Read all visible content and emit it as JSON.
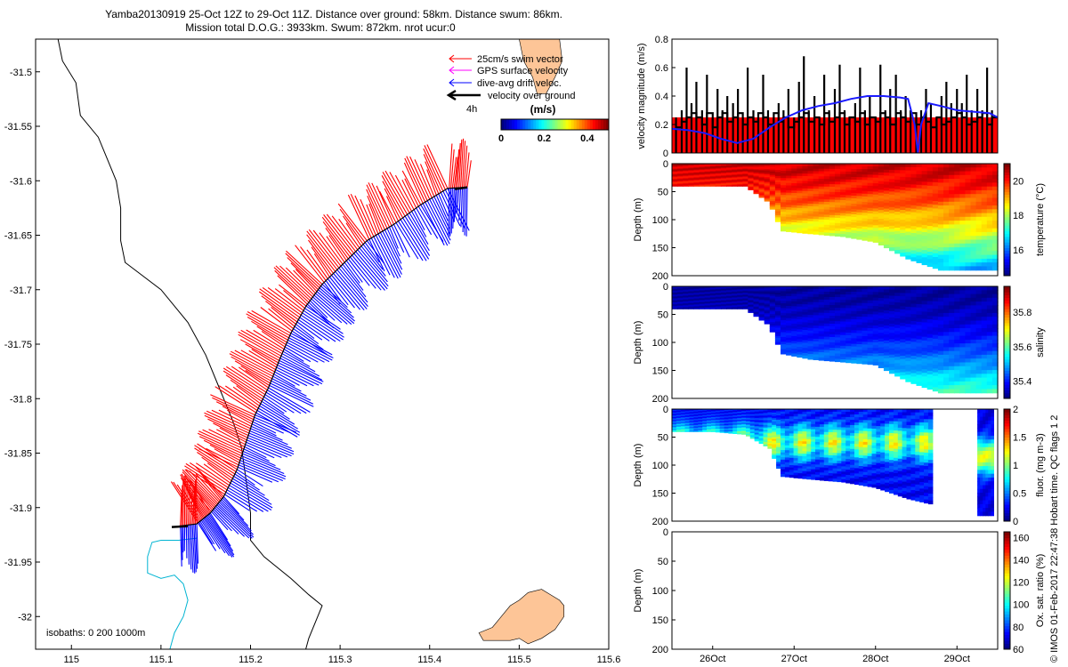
{
  "header": {
    "line1": "Yamba20130919 25-Oct 12Z to 29-Oct 11Z. Distance over ground: 58km. Distance swum: 86km.",
    "line2": "Mission total D.O.G.: 3933km. Swum: 872km. nrot ucur:0"
  },
  "side_note": "© IMOS 01-Feb-2017 22:47:38 Hobart time. QC flags 1  2",
  "colors": {
    "swim": "#ff0000",
    "gps": "#ff00ff",
    "drift": "#0000ff",
    "ground": "#000000",
    "land": "#fdc597",
    "coast": "#000000",
    "isobath": "#00b4d2"
  },
  "chart_data": [
    {
      "id": "map",
      "type": "line",
      "title": "",
      "xlabel": "",
      "ylabel": "",
      "xlim": [
        114.96,
        115.6
      ],
      "ylim": [
        -32.03,
        -31.47
      ],
      "xticks": [
        115,
        115.1,
        115.2,
        115.3,
        115.4,
        115.5,
        115.6
      ],
      "xtick_labels": [
        "115",
        "115.1",
        "115.2",
        "115.3",
        "115.4",
        "115.5",
        "115.6"
      ],
      "yticks": [
        -31.5,
        -31.55,
        -31.6,
        -31.65,
        -31.7,
        -31.75,
        -31.8,
        -31.85,
        -31.9,
        -31.95,
        -32
      ],
      "ytick_labels": [
        "-31.5",
        "-31.55",
        "-31.6",
        "-31.65",
        "-31.7",
        "-31.75",
        "-31.8",
        "-31.85",
        "-31.9",
        "-31.95",
        "-32"
      ],
      "legend": {
        "placement": "top-right",
        "entries": [
          "25cm/s swim vector",
          "GPS surface velocity",
          "dive-avg drift veloc.",
          "velocity over ground"
        ],
        "scale_label": "4h"
      },
      "colorbar": {
        "title": "(m/s)",
        "ticks": [
          "0",
          "0.2",
          "0.4"
        ],
        "range": [
          0,
          0.5
        ]
      },
      "isobaths_label": "isobaths: 0   200  1000m",
      "track": [
        [
          115.442,
          -31.606
        ],
        [
          115.42,
          -31.607
        ],
        [
          115.39,
          -31.622
        ],
        [
          115.36,
          -31.64
        ],
        [
          115.33,
          -31.655
        ],
        [
          115.305,
          -31.675
        ],
        [
          115.28,
          -31.695
        ],
        [
          115.262,
          -31.715
        ],
        [
          115.245,
          -31.74
        ],
        [
          115.232,
          -31.765
        ],
        [
          115.22,
          -31.79
        ],
        [
          115.205,
          -31.815
        ],
        [
          115.195,
          -31.84
        ],
        [
          115.185,
          -31.865
        ],
        [
          115.17,
          -31.89
        ],
        [
          115.155,
          -31.905
        ],
        [
          115.14,
          -31.915
        ],
        [
          115.12,
          -31.917
        ]
      ],
      "coastline": [
        [
          114.985,
          -31.47
        ],
        [
          114.99,
          -31.49
        ],
        [
          115.005,
          -31.51
        ],
        [
          115.01,
          -31.54
        ],
        [
          115.03,
          -31.56
        ],
        [
          115.04,
          -31.58
        ],
        [
          115.05,
          -31.6
        ],
        [
          115.055,
          -31.625
        ],
        [
          115.055,
          -31.655
        ],
        [
          115.06,
          -31.675
        ],
        [
          115.1,
          -31.7
        ],
        [
          115.13,
          -31.73
        ],
        [
          115.15,
          -31.76
        ],
        [
          115.165,
          -31.79
        ],
        [
          115.18,
          -31.82
        ],
        [
          115.19,
          -31.845
        ],
        [
          115.195,
          -31.875
        ],
        [
          115.2,
          -31.905
        ],
        [
          115.2,
          -31.93
        ],
        [
          115.215,
          -31.945
        ],
        [
          115.245,
          -31.965
        ],
        [
          115.265,
          -31.98
        ],
        [
          115.28,
          -31.99
        ],
        [
          115.275,
          -32.0
        ],
        [
          115.265,
          -32.02
        ],
        [
          115.26,
          -32.035
        ]
      ],
      "isobath": [
        [
          115.14,
          -31.928
        ],
        [
          115.12,
          -31.93
        ],
        [
          115.1,
          -31.93
        ],
        [
          115.09,
          -31.932
        ],
        [
          115.085,
          -31.945
        ],
        [
          115.085,
          -31.96
        ],
        [
          115.1,
          -31.965
        ],
        [
          115.115,
          -31.962
        ],
        [
          115.125,
          -31.97
        ],
        [
          115.13,
          -31.985
        ],
        [
          115.125,
          -32.0
        ],
        [
          115.115,
          -32.015
        ],
        [
          115.11,
          -32.03
        ]
      ],
      "island": [
        [
          115.455,
          -32.015
        ],
        [
          115.47,
          -32.01
        ],
        [
          115.48,
          -32.0
        ],
        [
          115.49,
          -31.99
        ],
        [
          115.5,
          -31.985
        ],
        [
          115.51,
          -31.978
        ],
        [
          115.525,
          -31.975
        ],
        [
          115.535,
          -31.98
        ],
        [
          115.545,
          -31.985
        ],
        [
          115.55,
          -31.99
        ],
        [
          115.55,
          -32.0
        ],
        [
          115.54,
          -32.012
        ],
        [
          115.525,
          -32.02
        ],
        [
          115.51,
          -32.025
        ],
        [
          115.5,
          -32.02
        ],
        [
          115.49,
          -32.022
        ],
        [
          115.475,
          -32.022
        ],
        [
          115.46,
          -32.022
        ],
        [
          115.455,
          -32.015
        ]
      ],
      "mainland_ne": [
        [
          115.5,
          -31.47
        ],
        [
          115.545,
          -31.47
        ],
        [
          115.548,
          -31.49
        ],
        [
          115.54,
          -31.505
        ],
        [
          115.53,
          -31.52
        ],
        [
          115.52,
          -31.52
        ],
        [
          115.515,
          -31.505
        ],
        [
          115.505,
          -31.49
        ],
        [
          115.5,
          -31.47
        ]
      ]
    },
    {
      "id": "velocity",
      "type": "bar",
      "ylabel": "velocity magnitude (m/s)",
      "ylim": [
        0,
        0.8
      ],
      "yticks": [
        0,
        0.2,
        0.4,
        0.6,
        0.8
      ],
      "xlim": [
        25.5,
        29.5
      ],
      "red_band": 0.25,
      "bars_x": [
        25.55,
        25.62,
        25.68,
        25.74,
        25.8,
        25.87,
        25.93,
        26.0,
        26.06,
        26.12,
        26.18,
        26.25,
        26.31,
        26.37,
        26.43,
        26.5,
        26.56,
        26.62,
        26.68,
        26.75,
        26.81,
        26.87,
        26.93,
        27.0,
        27.06,
        27.12,
        27.18,
        27.25,
        27.31,
        27.37,
        27.43,
        27.5,
        27.56,
        27.62,
        27.68,
        27.75,
        27.81,
        27.87,
        27.93,
        28.0,
        28.06,
        28.12,
        28.18,
        28.25,
        28.31,
        28.37,
        28.43,
        28.5,
        28.56,
        28.62,
        28.68,
        28.75,
        28.81,
        28.87,
        28.93,
        29.0,
        29.06,
        29.12,
        29.18,
        29.25,
        29.31,
        29.37,
        29.43
      ],
      "bars_y": [
        0.25,
        0.3,
        0.6,
        0.35,
        0.5,
        0.3,
        0.55,
        0.25,
        0.45,
        0.3,
        0.4,
        0.35,
        0.45,
        0.25,
        0.6,
        0.3,
        0.25,
        0.55,
        0.3,
        0.25,
        0.35,
        0.3,
        0.45,
        0.25,
        0.5,
        0.68,
        0.3,
        0.4,
        0.25,
        0.55,
        0.3,
        0.45,
        0.62,
        0.3,
        0.25,
        0.35,
        0.6,
        0.3,
        0.4,
        0.25,
        0.62,
        0.3,
        0.45,
        0.55,
        0.3,
        0.4,
        0.3,
        0.25,
        0.3,
        0.45,
        0.35,
        0.25,
        0.4,
        0.5,
        0.35,
        0.45,
        0.35,
        0.55,
        0.3,
        0.45,
        0.3,
        0.6,
        0.3
      ],
      "ground_speed": [
        0.18,
        0.22,
        0.25,
        0.28,
        0.25,
        0.2,
        0.28,
        0.18,
        0.25,
        0.28,
        0.22,
        0.25,
        0.28,
        0.2,
        0.25,
        0.22,
        0.28,
        0.25,
        0.2,
        0.28,
        0.22,
        0.25,
        0.18,
        0.22,
        0.25,
        0.28,
        0.22,
        0.25,
        0.2,
        0.28,
        0.22,
        0.25,
        0.28,
        0.2,
        0.25,
        0.22,
        0.28,
        0.2,
        0.25,
        0.22,
        0.28,
        0.25,
        0.2,
        0.28,
        0.25,
        0.22,
        0.28,
        0.2,
        0.25,
        0.22,
        0.18,
        0.25,
        0.2,
        0.22,
        0.25,
        0.28,
        0.25,
        0.2,
        0.22,
        0.25,
        0.28,
        0.2,
        0.25
      ],
      "drift_x": [
        25.5,
        25.7,
        25.9,
        26.1,
        26.3,
        26.5,
        26.7,
        26.9,
        27.1,
        27.3,
        27.5,
        27.7,
        27.9,
        28.1,
        28.3,
        28.4,
        28.48,
        28.52,
        28.56,
        28.65,
        28.8,
        29.0,
        29.2,
        29.4,
        29.5
      ],
      "drift_y": [
        0.17,
        0.16,
        0.14,
        0.1,
        0.07,
        0.1,
        0.18,
        0.25,
        0.3,
        0.33,
        0.35,
        0.38,
        0.4,
        0.4,
        0.39,
        0.38,
        0.2,
        0.0,
        0.2,
        0.35,
        0.33,
        0.3,
        0.29,
        0.28,
        0.25
      ]
    },
    {
      "id": "temperature",
      "type": "heatmap",
      "ylabel": "Depth (m)",
      "ylim": [
        0,
        200
      ],
      "yticks": [
        0,
        50,
        100,
        150,
        200
      ],
      "xlim": [
        25.5,
        29.5
      ],
      "colorbar_label": "temperature (°C)",
      "colorbar_ticks": [
        16,
        18,
        20
      ],
      "crange": [
        14.5,
        21
      ],
      "bottom_profile": [
        [
          25.5,
          40
        ],
        [
          26.0,
          40
        ],
        [
          26.4,
          40
        ],
        [
          26.7,
          70
        ],
        [
          26.85,
          120
        ],
        [
          27.2,
          125
        ],
        [
          27.6,
          130
        ],
        [
          28.0,
          140
        ],
        [
          28.4,
          170
        ],
        [
          28.8,
          190
        ],
        [
          29.5,
          190
        ]
      ],
      "surface_value": 20.5,
      "deep_value": 16
    },
    {
      "id": "salinity",
      "type": "heatmap",
      "ylabel": "Depth (m)",
      "ylim": [
        0,
        200
      ],
      "yticks": [
        0,
        50,
        100,
        150,
        200
      ],
      "xlim": [
        25.5,
        29.5
      ],
      "colorbar_label": "salinity",
      "colorbar_ticks": [
        35.4,
        35.6,
        35.8
      ],
      "crange": [
        35.3,
        35.95
      ],
      "bottom_profile": [
        [
          25.5,
          40
        ],
        [
          26.0,
          40
        ],
        [
          26.4,
          40
        ],
        [
          26.7,
          70
        ],
        [
          26.85,
          120
        ],
        [
          27.2,
          130
        ],
        [
          27.6,
          135
        ],
        [
          28.0,
          140
        ],
        [
          28.4,
          170
        ],
        [
          28.8,
          190
        ],
        [
          29.5,
          190
        ]
      ],
      "surface_value": 35.32,
      "deep_value": 35.62
    },
    {
      "id": "fluorescence",
      "type": "heatmap",
      "ylabel": "Depth (m)",
      "ylim": [
        0,
        200
      ],
      "yticks": [
        0,
        50,
        100,
        150,
        200
      ],
      "xlim": [
        25.5,
        29.5
      ],
      "colorbar_label": "fluor. (mg m-3)",
      "colorbar_ticks": [
        0,
        0.5,
        1,
        1.5,
        2
      ],
      "crange": [
        0,
        2
      ],
      "bottom_profile": [
        [
          25.5,
          40
        ],
        [
          26.0,
          40
        ],
        [
          26.4,
          45
        ],
        [
          26.7,
          70
        ],
        [
          26.85,
          120
        ],
        [
          27.2,
          125
        ],
        [
          27.6,
          130
        ],
        [
          28.0,
          140
        ],
        [
          28.4,
          160
        ],
        [
          28.7,
          170
        ]
      ],
      "data_end": 28.7,
      "gap_start": 28.7,
      "gap_end": 29.2,
      "surface_value": 0.25,
      "max_value": 1.3
    },
    {
      "id": "oxygen",
      "type": "heatmap",
      "ylabel": "Depth (m)",
      "ylim": [
        0,
        200
      ],
      "yticks": [
        0,
        50,
        100,
        150,
        200
      ],
      "xlim": [
        25.5,
        29.5
      ],
      "colorbar_label": "Ox. sat. ratio (%)",
      "colorbar_ticks": [
        60,
        80,
        100,
        120,
        140,
        160
      ],
      "crange": [
        60,
        165
      ],
      "xticks": [
        26,
        27,
        28,
        29
      ],
      "xtick_labels": [
        "26Oct",
        "27Oct",
        "28Oct",
        "29Oct"
      ]
    }
  ]
}
